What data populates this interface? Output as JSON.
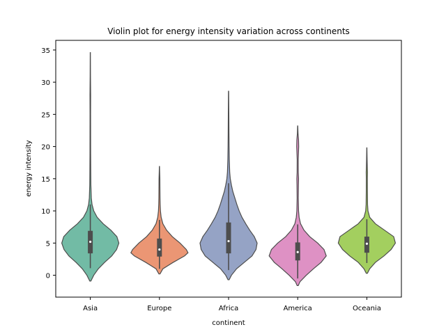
{
  "chart_data": {
    "type": "violin",
    "title": "Violin plot for energy intensity variation across continents",
    "xlabel": "continent",
    "ylabel": "energy intensity",
    "ylim": [
      -3.4,
      36.5
    ],
    "yticks": [
      0,
      5,
      10,
      15,
      20,
      25,
      30,
      35
    ],
    "grid": false,
    "categories": [
      "Asia",
      "Europe",
      "Africa",
      "America",
      "Oceania"
    ],
    "series": [
      {
        "color": "#72bba5",
        "range": [
          -0.9,
          34.6
        ],
        "quartiles": [
          3.4,
          5.2,
          6.9
        ],
        "whiskers": [
          1.1,
          11.0
        ],
        "density": [
          [
            -0.9,
            0.02
          ],
          [
            0,
            0.12
          ],
          [
            1,
            0.28
          ],
          [
            2,
            0.5
          ],
          [
            3,
            0.75
          ],
          [
            4,
            0.92
          ],
          [
            5,
            1.0
          ],
          [
            6,
            0.93
          ],
          [
            7,
            0.72
          ],
          [
            8,
            0.45
          ],
          [
            9,
            0.24
          ],
          [
            10,
            0.12
          ],
          [
            11,
            0.06
          ],
          [
            12,
            0.035
          ],
          [
            14,
            0.02
          ],
          [
            16,
            0.016
          ],
          [
            19,
            0.012
          ],
          [
            22,
            0.011
          ],
          [
            25,
            0.01
          ],
          [
            28,
            0.012
          ],
          [
            31,
            0.006
          ],
          [
            34.6,
            0.003
          ]
        ]
      },
      {
        "color": "#eb9674",
        "range": [
          0.2,
          16.9
        ],
        "quartiles": [
          2.9,
          4.0,
          5.7
        ],
        "whiskers": [
          1.0,
          8.6
        ],
        "density": [
          [
            0.2,
            0.02
          ],
          [
            1,
            0.12
          ],
          [
            2,
            0.48
          ],
          [
            3,
            0.88
          ],
          [
            3.5,
            1.0
          ],
          [
            4,
            0.94
          ],
          [
            5,
            0.72
          ],
          [
            6,
            0.45
          ],
          [
            7,
            0.25
          ],
          [
            8,
            0.12
          ],
          [
            9,
            0.06
          ],
          [
            10,
            0.035
          ],
          [
            11,
            0.025
          ],
          [
            12,
            0.02
          ],
          [
            14,
            0.016
          ],
          [
            15,
            0.015
          ],
          [
            16,
            0.008
          ],
          [
            16.9,
            0.003
          ]
        ]
      },
      {
        "color": "#95a3c5",
        "range": [
          -0.7,
          28.6
        ],
        "quartiles": [
          3.4,
          5.3,
          8.2
        ],
        "whiskers": [
          0.8,
          14.3
        ],
        "density": [
          [
            -0.7,
            0.02
          ],
          [
            0,
            0.1
          ],
          [
            1,
            0.28
          ],
          [
            2,
            0.55
          ],
          [
            3,
            0.82
          ],
          [
            4,
            0.96
          ],
          [
            5,
            1.0
          ],
          [
            6,
            0.9
          ],
          [
            7,
            0.74
          ],
          [
            8,
            0.6
          ],
          [
            9,
            0.47
          ],
          [
            10,
            0.37
          ],
          [
            11,
            0.29
          ],
          [
            12,
            0.22
          ],
          [
            13,
            0.15
          ],
          [
            14,
            0.1
          ],
          [
            15,
            0.06
          ],
          [
            16,
            0.04
          ],
          [
            18,
            0.025
          ],
          [
            20,
            0.018
          ],
          [
            22,
            0.014
          ],
          [
            25,
            0.01
          ],
          [
            28.6,
            0.004
          ]
        ]
      },
      {
        "color": "#de91c4",
        "range": [
          -1.6,
          23.2
        ],
        "quartiles": [
          2.3,
          3.6,
          5.1
        ],
        "whiskers": [
          -0.5,
          7.9
        ],
        "density": [
          [
            -1.6,
            0.02
          ],
          [
            -1,
            0.08
          ],
          [
            0,
            0.3
          ],
          [
            1,
            0.55
          ],
          [
            2,
            0.82
          ],
          [
            3,
            1.0
          ],
          [
            4,
            0.92
          ],
          [
            5,
            0.7
          ],
          [
            6,
            0.42
          ],
          [
            7,
            0.22
          ],
          [
            8,
            0.1
          ],
          [
            9,
            0.05
          ],
          [
            10,
            0.03
          ],
          [
            12,
            0.02
          ],
          [
            14,
            0.025
          ],
          [
            15,
            0.03
          ],
          [
            16,
            0.02
          ],
          [
            18,
            0.018
          ],
          [
            20,
            0.035
          ],
          [
            21,
            0.03
          ],
          [
            22,
            0.012
          ],
          [
            23.2,
            0.003
          ]
        ]
      },
      {
        "color": "#a3cf5f",
        "range": [
          0.3,
          19.8
        ],
        "quartiles": [
          3.5,
          4.9,
          6.0
        ],
        "whiskers": [
          1.9,
          8.7
        ],
        "density": [
          [
            0.3,
            0.02
          ],
          [
            1,
            0.1
          ],
          [
            2,
            0.3
          ],
          [
            3,
            0.6
          ],
          [
            4,
            0.85
          ],
          [
            5,
            1.0
          ],
          [
            6,
            0.94
          ],
          [
            7,
            0.62
          ],
          [
            8,
            0.3
          ],
          [
            9,
            0.1
          ],
          [
            10,
            0.04
          ],
          [
            11,
            0.025
          ],
          [
            13,
            0.02
          ],
          [
            15,
            0.018
          ],
          [
            16,
            0.022
          ],
          [
            17,
            0.015
          ],
          [
            18,
            0.01
          ],
          [
            19.8,
            0.003
          ]
        ]
      }
    ]
  }
}
